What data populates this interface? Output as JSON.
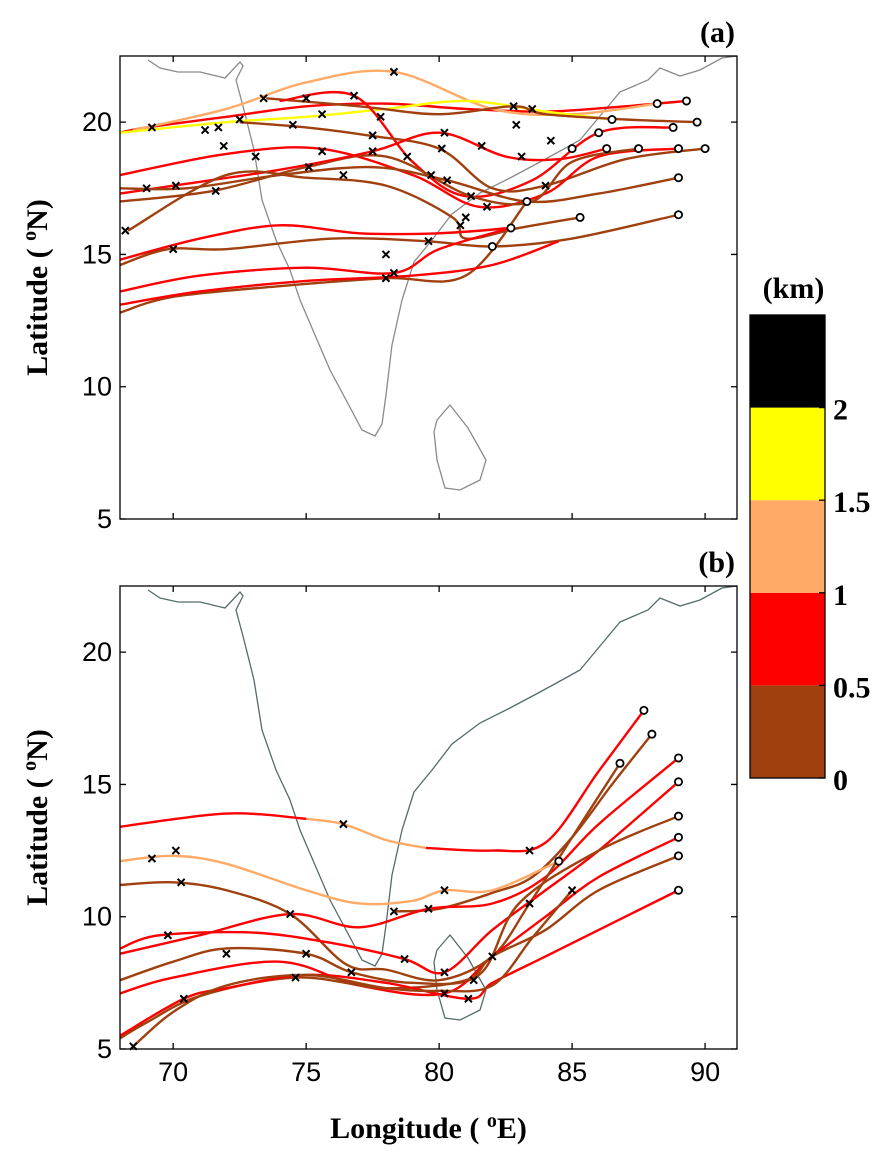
{
  "chart_data": [
    {
      "type": "trajectory",
      "panel_label": "(a)",
      "ylabel": [
        "Latitude ( ",
        "o",
        "N)"
      ],
      "xlim": [
        68,
        91.2
      ],
      "ylim": [
        5,
        22.5
      ],
      "xticks": [
        70,
        75,
        80,
        85,
        90
      ],
      "yticks": [
        5,
        10,
        15,
        20
      ],
      "show_xticklabels": false,
      "series": [
        {
          "color": "#ff0000",
          "x": [
            89.3,
            87,
            84,
            81,
            78,
            75,
            72,
            69,
            68
          ],
          "y": [
            20.8,
            20.6,
            20.4,
            20.5,
            20.7,
            20.6,
            20.2,
            19.8,
            19.6
          ]
        },
        {
          "color": "#ffaa66",
          "x": [
            88.2,
            85,
            82,
            78.3,
            75,
            72,
            68.5
          ],
          "y": [
            20.7,
            20.3,
            20.5,
            21.9,
            21.5,
            20.5,
            19.7
          ]
        },
        {
          "color": "#ffff00",
          "x": [
            86.5,
            84,
            81,
            78,
            75,
            72,
            68
          ],
          "y": [
            20.1,
            20.4,
            20.8,
            20.5,
            20.2,
            20.0,
            19.6
          ]
        },
        {
          "color": "#a0400f",
          "x": [
            89.7,
            87,
            84,
            82.8,
            80,
            77,
            73.5
          ],
          "y": [
            20.0,
            20.1,
            20.3,
            20.6,
            20.3,
            20.6,
            20.9
          ]
        },
        {
          "color": "#ff0000",
          "x": [
            88.8,
            86,
            83.5,
            81,
            79,
            76.8,
            74
          ],
          "y": [
            19.8,
            19.6,
            17.8,
            17.2,
            18.5,
            21.0,
            20.8
          ]
        },
        {
          "color": "#a0400f",
          "x": [
            90,
            87,
            84,
            82,
            80,
            77.3,
            75,
            72.5
          ],
          "y": [
            19,
            18.6,
            17.6,
            17.5,
            19,
            19.5,
            19.8,
            20
          ]
        },
        {
          "color": "#ff0000",
          "x": [
            89,
            86,
            84,
            81.5,
            79,
            75.5,
            72,
            68
          ],
          "y": [
            19,
            18.7,
            17.3,
            16.8,
            18,
            19,
            18.8,
            18
          ]
        },
        {
          "color": "#a0400f",
          "x": [
            87.5,
            85,
            83.5,
            81.2,
            78,
            75,
            71.5,
            68
          ],
          "y": [
            19,
            18.5,
            17,
            17.2,
            18.7,
            18.3,
            17.4,
            17
          ]
        },
        {
          "color": "#ff0000",
          "x": [
            86.3,
            84.5,
            82.5,
            80,
            77.5,
            74,
            70,
            68
          ],
          "y": [
            19,
            18.6,
            18.7,
            19.6,
            18.9,
            18.2,
            17.6,
            17.3
          ]
        },
        {
          "color": "#a0400f",
          "x": [
            89,
            86,
            83.3,
            80.3,
            77.5,
            74,
            70.5,
            68
          ],
          "y": [
            17.9,
            17.3,
            17,
            17.8,
            18.3,
            18,
            17.5,
            17.5
          ]
        },
        {
          "color": "#a0400f",
          "x": [
            85.3,
            83,
            81,
            80.5,
            78,
            75,
            72,
            68.3
          ],
          "y": [
            16.4,
            16,
            15.6,
            16.4,
            17.6,
            17.9,
            18.0,
            15.9
          ]
        },
        {
          "color": "#ff0000",
          "x": [
            82.7,
            80,
            77,
            74,
            71,
            68
          ],
          "y": [
            16,
            15.8,
            15.8,
            16.1,
            15.6,
            14.8
          ]
        },
        {
          "color": "#a0400f",
          "x": [
            89,
            85,
            82,
            79.5,
            76,
            72,
            69.8,
            68
          ],
          "y": [
            16.5,
            15.6,
            15.3,
            15.5,
            15.6,
            15.2,
            15.2,
            14.6
          ]
        },
        {
          "color": "#ff0000",
          "x": [
            82.7,
            80,
            78.3,
            75,
            71,
            68
          ],
          "y": [
            16.0,
            15.2,
            14.3,
            14.5,
            14.2,
            13.6
          ]
        },
        {
          "color": "#a0400f",
          "x": [
            83.3,
            81,
            78,
            74,
            70,
            68
          ],
          "y": [
            17.0,
            14.2,
            14.1,
            13.8,
            13.4,
            12.8
          ]
        },
        {
          "color": "#ff0000",
          "x": [
            84.5,
            82,
            79,
            75,
            71,
            68
          ],
          "y": [
            15.5,
            14.6,
            14.2,
            14.0,
            13.6,
            13.1
          ]
        }
      ],
      "start_points": {
        "x": [
          89.3,
          88.2,
          89.7,
          88.8,
          86.5,
          86,
          86.3,
          87.5,
          89,
          90,
          85,
          89,
          85.3,
          89,
          83.3,
          82.7,
          82
        ],
        "y": [
          20.8,
          20.7,
          20.0,
          19.8,
          20.1,
          19.6,
          19.0,
          19.0,
          19,
          19,
          19,
          17.9,
          16.4,
          16.5,
          17.0,
          16.0,
          15.3
        ]
      },
      "cross_points": {
        "x": [
          69.2,
          71.7,
          73.4,
          75,
          76.8,
          78.3,
          82.8,
          83.5,
          71.2,
          72.5,
          74.5,
          75.6,
          77.5,
          77.8,
          80.2,
          82.9,
          71.9,
          73.1,
          75.1,
          75.6,
          77.5,
          78.8,
          80.1,
          81.6,
          83.1,
          84.2,
          69,
          70.1,
          71.6,
          76.4,
          79.7,
          80.3,
          81.2,
          81.8,
          84,
          81,
          80.8,
          68.2,
          70,
          79.6,
          78,
          78.3,
          78
        ],
        "y": [
          19.8,
          19.8,
          20.9,
          20.9,
          21.0,
          21.9,
          20.6,
          20.5,
          19.7,
          20.1,
          19.9,
          20.3,
          19.5,
          20.2,
          19.6,
          19.9,
          19.1,
          18.7,
          18.3,
          18.9,
          18.9,
          18.7,
          19.0,
          19.1,
          18.7,
          19.3,
          17.5,
          17.6,
          17.4,
          18.0,
          18.0,
          17.8,
          17.2,
          16.8,
          17.6,
          16.4,
          16.1,
          15.9,
          15.2,
          15.5,
          15.0,
          14.3,
          14.1
        ]
      }
    },
    {
      "type": "trajectory",
      "panel_label": "(b)",
      "ylabel": [
        "Latitude ( ",
        "o",
        "N)"
      ],
      "xlabel": [
        "Longitude ( ",
        "o",
        "E)"
      ],
      "xlim": [
        68,
        91.2
      ],
      "ylim": [
        5,
        22.5
      ],
      "xticks": [
        70,
        75,
        80,
        85,
        90
      ],
      "yticks": [
        5,
        10,
        15,
        20
      ],
      "show_xticklabels": true,
      "series": [
        {
          "color": "#ff0000",
          "x": [
            87.7,
            86,
            84,
            82,
            79.5
          ],
          "y": [
            17.8,
            15.5,
            12.8,
            12.5,
            12.6
          ]
        },
        {
          "color": "#ffaa66",
          "x": [
            79.5,
            78,
            76.4,
            75
          ],
          "y": [
            12.6,
            12.9,
            13.5,
            13.7
          ]
        },
        {
          "color": "#ff0000",
          "x": [
            75,
            72,
            68
          ],
          "y": [
            13.7,
            13.9,
            13.4
          ]
        },
        {
          "color": "#a0400f",
          "x": [
            88,
            86.5,
            85,
            83.5,
            82,
            80,
            78.3
          ],
          "y": [
            16.9,
            15,
            13,
            11.5,
            10.9,
            10.3,
            10.2
          ]
        },
        {
          "color": "#ffaa66",
          "x": [
            84.5,
            82,
            80.2,
            79,
            77,
            75,
            72,
            70,
            68
          ],
          "y": [
            12.1,
            11,
            11,
            10.6,
            10.5,
            11,
            12,
            12.3,
            12.1
          ]
        },
        {
          "color": "#ff0000",
          "x": [
            89,
            86,
            84,
            82,
            79.6,
            77,
            74.4,
            71,
            68
          ],
          "y": [
            16,
            13.5,
            11.5,
            10.5,
            10.3,
            9.6,
            10.1,
            9.3,
            8.6
          ]
        },
        {
          "color": "#a0400f",
          "x": [
            86.8,
            85,
            83.4,
            82,
            80,
            78,
            76.5,
            74.4,
            72,
            70,
            68
          ],
          "y": [
            15.8,
            13,
            10.5,
            8.5,
            7.6,
            8,
            8.2,
            10.1,
            11,
            11.3,
            11.2
          ]
        },
        {
          "color": "#ff0000",
          "x": [
            89,
            86,
            84,
            82,
            80.2,
            78.7,
            76,
            73,
            69.5,
            68
          ],
          "y": [
            15.1,
            12.5,
            11,
            9.5,
            7.9,
            8.4,
            9.0,
            9.4,
            9.3,
            8.8
          ]
        },
        {
          "color": "#a0400f",
          "x": [
            89,
            86,
            83,
            81.5,
            79,
            76.7,
            75,
            72,
            70,
            68
          ],
          "y": [
            13.8,
            12.5,
            10.5,
            7.8,
            7.5,
            7.9,
            8.6,
            8.8,
            8.3,
            7.6
          ]
        },
        {
          "color": "#ff0000",
          "x": [
            89,
            86,
            84,
            82,
            80.2,
            77,
            74,
            70,
            68
          ],
          "y": [
            13,
            11.5,
            10,
            8.5,
            7.1,
            7.4,
            8.3,
            7.7,
            7.1
          ]
        },
        {
          "color": "#a0400f",
          "x": [
            89,
            86,
            84,
            82,
            81,
            78,
            74.6,
            71,
            69,
            68
          ],
          "y": [
            12.3,
            11,
            9.5,
            8.5,
            7.6,
            7.3,
            7.7,
            7.0,
            6.0,
            5.4
          ]
        },
        {
          "color": "#ff0000",
          "x": [
            89,
            86,
            84,
            82,
            81.1,
            78,
            75,
            72,
            70.4,
            68
          ],
          "y": [
            11,
            9.5,
            8.5,
            7.5,
            6.9,
            7.5,
            7.8,
            7.3,
            6.9,
            5.5
          ]
        },
        {
          "color": "#a0400f",
          "x": [
            85,
            83.5,
            82,
            80,
            78,
            75,
            72,
            70,
            68.5
          ],
          "y": [
            11,
            9.2,
            7.4,
            7.2,
            7.3,
            7.8,
            7.4,
            6.4,
            5.1
          ]
        }
      ],
      "start_points": {
        "x": [
          87.7,
          88,
          86.8,
          89,
          89,
          89,
          89,
          89,
          84.5,
          89
        ],
        "y": [
          17.8,
          16.9,
          15.8,
          16,
          15.1,
          13.8,
          13,
          12.3,
          12.1,
          11
        ]
      },
      "cross_points": {
        "x": [
          69.2,
          70.1,
          70.3,
          76.4,
          78.3,
          79.6,
          80.2,
          83.4,
          74.4,
          69.8,
          72,
          75,
          74.6,
          76.7,
          78.7,
          80.2,
          80.2,
          81.1,
          81.3,
          82,
          83.4,
          85,
          70.4,
          68.5
        ],
        "y": [
          12.2,
          12.5,
          11.3,
          13.5,
          10.2,
          10.3,
          11.0,
          12.5,
          10.1,
          9.3,
          8.6,
          8.6,
          7.7,
          7.9,
          8.4,
          7.9,
          7.1,
          6.9,
          7.6,
          8.5,
          10.5,
          11,
          6.9,
          5.1
        ]
      }
    }
  ],
  "colorbar": {
    "title": "(km)",
    "lim": [
      0,
      2.5
    ],
    "ticks": [
      0,
      0.5,
      1,
      1.5,
      2
    ],
    "colors": [
      "#a0400f",
      "#ff0000",
      "#ffaa66",
      "#ffff00",
      "#000000"
    ]
  }
}
